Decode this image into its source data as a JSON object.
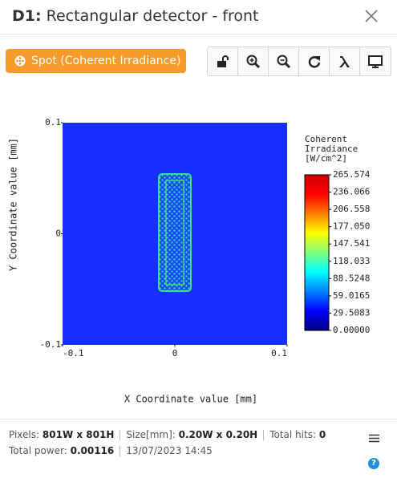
{
  "header": {
    "id": "D1:",
    "title": "Rectangular detector - front"
  },
  "toolbar": {
    "display_button": "Spot (Coherent Irradiance)"
  },
  "chart_data": {
    "type": "heatmap",
    "xlabel": "X Coordinate value [mm]",
    "ylabel": "Y Coordinate value [mm]",
    "xlim": [
      -0.1,
      0.1
    ],
    "xticks": [
      -0.1,
      0,
      0.1
    ],
    "ylim": [
      -0.1,
      0.1
    ],
    "yticks": [
      -0.1,
      0,
      0.1
    ],
    "colorbar": {
      "title": [
        "Coherent",
        "Irradiance",
        "[W/cm^2]"
      ],
      "colormap": "jet",
      "clim": [
        0,
        265.574
      ],
      "ticks": [
        {
          "value": 0,
          "label": "0.00000"
        },
        29.5083,
        59.0165,
        88.5248,
        118.033,
        147.541,
        {
          "value": 177.05,
          "label": "177.050"
        },
        206.558,
        236.066,
        265.574
      ]
    }
  },
  "footer": {
    "rows": [
      [
        {
          "label": "Pixels:",
          "value": "801W x 801H"
        },
        {
          "label": "Size[mm]:",
          "value": "0.20W x 0.20H"
        },
        {
          "label": "Total hits:",
          "value": "0"
        }
      ],
      [
        {
          "label": "Total power:",
          "value": "0.00116"
        },
        {
          "label": null,
          "value": "13/07/2023 14:45"
        }
      ]
    ],
    "help": "?"
  }
}
